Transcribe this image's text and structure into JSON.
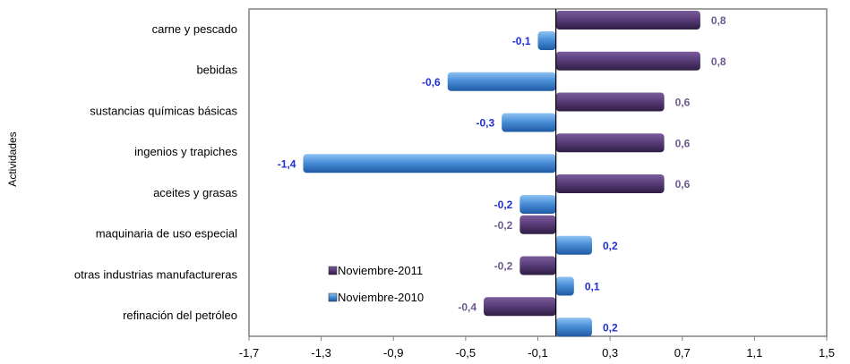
{
  "chart_data": {
    "type": "bar",
    "orientation": "horizontal",
    "ylabel": "Actividades",
    "xlabel": "",
    "xlim": [
      -1.7,
      1.5
    ],
    "xticks": [
      "-1,7",
      "-1,3",
      "-0,9",
      "-0,5",
      "-0,1",
      "0,3",
      "0,7",
      "1,1",
      "1,5"
    ],
    "categories": [
      "carne y pescado",
      "bebidas",
      "sustancias químicas básicas",
      "ingenios y trapiches",
      "aceites y grasas",
      "maquinaria de uso especial",
      "otras industrias manufactureras",
      "refinación del petróleo"
    ],
    "series": [
      {
        "name": "Noviembre-2011",
        "color": "#5b3f78",
        "label_color": "#6b5a8e",
        "values": [
          0.8,
          0.8,
          0.6,
          0.6,
          0.6,
          -0.2,
          -0.2,
          -0.4
        ],
        "labels": [
          "0,8",
          "0,8",
          "0,6",
          "0,6",
          "0,6",
          "-0,2",
          "-0,2",
          "-0,4"
        ]
      },
      {
        "name": "Noviembre-2010",
        "color": "#4a8fd8",
        "label_color": "#1f2fd6",
        "values": [
          -0.1,
          -0.6,
          -0.3,
          -1.4,
          -0.2,
          0.2,
          0.1,
          0.2
        ],
        "labels": [
          "-0,1",
          "-0,6",
          "-0,3",
          "-1,4",
          "-0,2",
          "0,2",
          "0,1",
          "0,2"
        ]
      }
    ],
    "legend": "inside-bottom-center",
    "grid": false
  }
}
